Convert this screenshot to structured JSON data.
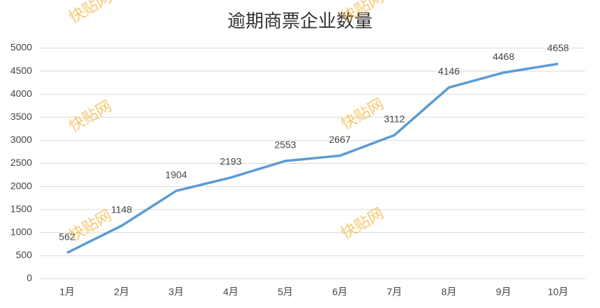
{
  "chart_data": {
    "type": "line",
    "title": "逾期商票企业数量",
    "categories": [
      "1月",
      "2月",
      "3月",
      "4月",
      "5月",
      "6月",
      "7月",
      "8月",
      "9月",
      "10月"
    ],
    "values": [
      562,
      1148,
      1904,
      2193,
      2553,
      2667,
      3112,
      4146,
      4468,
      4658
    ],
    "color": "#5b9bd5",
    "ylim": [
      0,
      5000
    ],
    "yticks": [
      0,
      500,
      1000,
      1500,
      2000,
      2500,
      3000,
      3500,
      4000,
      4500,
      5000
    ],
    "grid": true,
    "data_labels": true
  },
  "watermark": "快贴网"
}
